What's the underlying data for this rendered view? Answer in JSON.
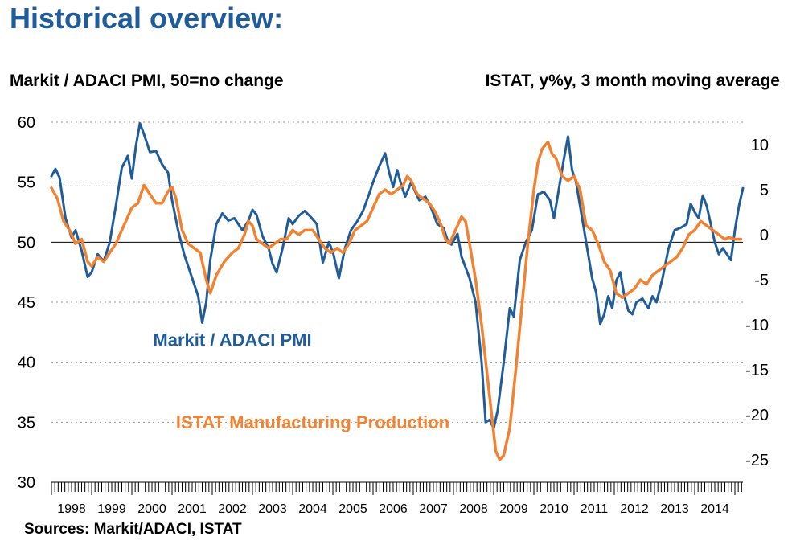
{
  "title": "Historical overview:",
  "sources": "Sources: Markit/ADACI, ISTAT",
  "colors": {
    "pmi": "#1F5C99",
    "istat": "#F08232",
    "title": "#1F5C99",
    "grid": "#9a9a9a"
  },
  "chart_data": {
    "type": "line",
    "left_axis_label": "Markit / ADACI PMI, 50=no change",
    "right_axis_label": "ISTAT, y%y, 3 month moving average",
    "left_ylim": [
      30,
      60
    ],
    "left_ticks": [
      "60",
      "55",
      "50",
      "45",
      "40",
      "35",
      "30"
    ],
    "right_ylim": [
      -27.5,
      12.5
    ],
    "right_ticks": [
      "10",
      "5",
      "0",
      "-5",
      "-10",
      "-15",
      "-20",
      "-25"
    ],
    "x_ticks": [
      "1998",
      "1999",
      "2000",
      "2001",
      "2002",
      "2003",
      "2004",
      "2005",
      "2006",
      "2007",
      "2008",
      "2009",
      "2010",
      "2011",
      "2012",
      "2013",
      "2014"
    ],
    "grid": "horizontal dotted",
    "series": [
      {
        "name": "Markit / ADACI PMI",
        "axis": "left",
        "points": [
          [
            1998.0,
            55.5
          ],
          [
            1998.1,
            56.1
          ],
          [
            1998.2,
            55.4
          ],
          [
            1998.35,
            52.0
          ],
          [
            1998.5,
            50.4
          ],
          [
            1998.6,
            51.0
          ],
          [
            1998.75,
            49.3
          ],
          [
            1998.9,
            47.1
          ],
          [
            1999.0,
            47.5
          ],
          [
            1999.15,
            49.0
          ],
          [
            1999.3,
            48.4
          ],
          [
            1999.45,
            50.0
          ],
          [
            1999.6,
            53.0
          ],
          [
            1999.75,
            56.2
          ],
          [
            1999.9,
            57.2
          ],
          [
            2000.0,
            55.3
          ],
          [
            2000.1,
            58.0
          ],
          [
            2000.2,
            59.9
          ],
          [
            2000.3,
            59.0
          ],
          [
            2000.45,
            57.5
          ],
          [
            2000.6,
            57.6
          ],
          [
            2000.75,
            56.5
          ],
          [
            2000.9,
            55.8
          ],
          [
            2001.0,
            53.5
          ],
          [
            2001.15,
            51.0
          ],
          [
            2001.3,
            49.0
          ],
          [
            2001.5,
            47.0
          ],
          [
            2001.65,
            45.5
          ],
          [
            2001.75,
            43.3
          ],
          [
            2001.85,
            45.0
          ],
          [
            2001.95,
            48.5
          ],
          [
            2002.1,
            51.5
          ],
          [
            2002.25,
            52.4
          ],
          [
            2002.4,
            51.8
          ],
          [
            2002.55,
            52.0
          ],
          [
            2002.75,
            51.0
          ],
          [
            2002.9,
            51.8
          ],
          [
            2003.0,
            52.7
          ],
          [
            2003.1,
            52.3
          ],
          [
            2003.25,
            50.5
          ],
          [
            2003.4,
            49.5
          ],
          [
            2003.5,
            48.2
          ],
          [
            2003.6,
            47.5
          ],
          [
            2003.75,
            49.5
          ],
          [
            2003.9,
            52.0
          ],
          [
            2004.0,
            51.5
          ],
          [
            2004.15,
            52.2
          ],
          [
            2004.3,
            52.6
          ],
          [
            2004.45,
            52.1
          ],
          [
            2004.6,
            51.5
          ],
          [
            2004.75,
            48.3
          ],
          [
            2004.9,
            50.0
          ],
          [
            2005.0,
            49.2
          ],
          [
            2005.15,
            47.0
          ],
          [
            2005.3,
            49.5
          ],
          [
            2005.45,
            51.0
          ],
          [
            2005.6,
            51.7
          ],
          [
            2005.75,
            52.6
          ],
          [
            2005.9,
            54.0
          ],
          [
            2006.0,
            55.0
          ],
          [
            2006.15,
            56.3
          ],
          [
            2006.3,
            57.4
          ],
          [
            2006.4,
            55.8
          ],
          [
            2006.5,
            54.6
          ],
          [
            2006.6,
            56.0
          ],
          [
            2006.7,
            54.8
          ],
          [
            2006.8,
            53.8
          ],
          [
            2006.95,
            55.0
          ],
          [
            2007.05,
            54.2
          ],
          [
            2007.15,
            53.5
          ],
          [
            2007.3,
            53.8
          ],
          [
            2007.45,
            52.8
          ],
          [
            2007.6,
            51.5
          ],
          [
            2007.75,
            51.2
          ],
          [
            2007.85,
            50.2
          ],
          [
            2007.95,
            49.8
          ],
          [
            2008.1,
            50.7
          ],
          [
            2008.2,
            48.8
          ],
          [
            2008.4,
            47.0
          ],
          [
            2008.55,
            45.0
          ],
          [
            2008.7,
            40.0
          ],
          [
            2008.8,
            35.0
          ],
          [
            2008.9,
            35.2
          ],
          [
            2009.0,
            34.5
          ],
          [
            2009.1,
            36.0
          ],
          [
            2009.25,
            40.0
          ],
          [
            2009.4,
            44.5
          ],
          [
            2009.5,
            43.8
          ],
          [
            2009.65,
            48.5
          ],
          [
            2009.8,
            50.0
          ],
          [
            2009.95,
            51.0
          ],
          [
            2010.1,
            54.0
          ],
          [
            2010.25,
            54.2
          ],
          [
            2010.4,
            53.5
          ],
          [
            2010.5,
            52.0
          ],
          [
            2010.6,
            54.0
          ],
          [
            2010.75,
            57.0
          ],
          [
            2010.85,
            58.8
          ],
          [
            2010.95,
            56.0
          ],
          [
            2011.05,
            55.0
          ],
          [
            2011.15,
            53.0
          ],
          [
            2011.25,
            51.0
          ],
          [
            2011.35,
            49.0
          ],
          [
            2011.45,
            47.0
          ],
          [
            2011.55,
            45.8
          ],
          [
            2011.65,
            43.2
          ],
          [
            2011.75,
            44.0
          ],
          [
            2011.85,
            45.5
          ],
          [
            2011.95,
            44.5
          ],
          [
            2012.05,
            46.8
          ],
          [
            2012.15,
            47.5
          ],
          [
            2012.25,
            45.5
          ],
          [
            2012.35,
            44.3
          ],
          [
            2012.45,
            44.0
          ],
          [
            2012.55,
            45.0
          ],
          [
            2012.7,
            45.3
          ],
          [
            2012.85,
            44.5
          ],
          [
            2012.95,
            45.5
          ],
          [
            2013.05,
            45.0
          ],
          [
            2013.2,
            47.0
          ],
          [
            2013.35,
            49.5
          ],
          [
            2013.5,
            51.0
          ],
          [
            2013.65,
            51.2
          ],
          [
            2013.8,
            51.5
          ],
          [
            2013.9,
            53.2
          ],
          [
            2014.0,
            52.5
          ],
          [
            2014.1,
            52.0
          ],
          [
            2014.2,
            53.9
          ],
          [
            2014.3,
            53.0
          ],
          [
            2014.4,
            51.5
          ],
          [
            2014.5,
            50.0
          ],
          [
            2014.6,
            49.0
          ],
          [
            2014.7,
            49.5
          ],
          [
            2014.8,
            49.0
          ],
          [
            2014.9,
            48.5
          ],
          [
            2015.0,
            51.0
          ],
          [
            2015.1,
            53.0
          ],
          [
            2015.2,
            54.5
          ]
        ]
      },
      {
        "name": "ISTAT Manufacturing Production",
        "axis": "right",
        "points": [
          [
            1998.0,
            5.2
          ],
          [
            1998.15,
            4.0
          ],
          [
            1998.3,
            1.5
          ],
          [
            1998.45,
            0.5
          ],
          [
            1998.6,
            -1.0
          ],
          [
            1998.75,
            -0.5
          ],
          [
            1998.9,
            -3.0
          ],
          [
            1999.0,
            -3.5
          ],
          [
            1999.15,
            -2.5
          ],
          [
            1999.3,
            -3.0
          ],
          [
            1999.45,
            -2.0
          ],
          [
            1999.6,
            -1.0
          ],
          [
            1999.75,
            0.5
          ],
          [
            1999.9,
            2.0
          ],
          [
            2000.0,
            3.0
          ],
          [
            2000.15,
            3.5
          ],
          [
            2000.3,
            5.5
          ],
          [
            2000.45,
            4.5
          ],
          [
            2000.6,
            3.5
          ],
          [
            2000.75,
            3.5
          ],
          [
            2000.9,
            4.8
          ],
          [
            2001.0,
            5.3
          ],
          [
            2001.1,
            4.0
          ],
          [
            2001.25,
            0.5
          ],
          [
            2001.4,
            -1.0
          ],
          [
            2001.55,
            -1.5
          ],
          [
            2001.7,
            -2.0
          ],
          [
            2001.85,
            -5.0
          ],
          [
            2001.95,
            -6.5
          ],
          [
            2002.1,
            -4.5
          ],
          [
            2002.3,
            -3.0
          ],
          [
            2002.5,
            -2.0
          ],
          [
            2002.65,
            -1.5
          ],
          [
            2002.8,
            0.0
          ],
          [
            2002.9,
            1.5
          ],
          [
            2003.0,
            1.0
          ],
          [
            2003.1,
            -0.5
          ],
          [
            2003.25,
            -1.0
          ],
          [
            2003.4,
            -1.5
          ],
          [
            2003.55,
            -1.0
          ],
          [
            2003.7,
            -0.5
          ],
          [
            2003.85,
            -0.5
          ],
          [
            2004.0,
            0.5
          ],
          [
            2004.15,
            0.0
          ],
          [
            2004.3,
            0.5
          ],
          [
            2004.5,
            0.5
          ],
          [
            2004.65,
            -0.5
          ],
          [
            2004.8,
            -1.5
          ],
          [
            2004.95,
            -2.0
          ],
          [
            2005.1,
            -1.5
          ],
          [
            2005.25,
            -2.0
          ],
          [
            2005.4,
            -1.0
          ],
          [
            2005.55,
            0.5
          ],
          [
            2005.7,
            1.0
          ],
          [
            2005.85,
            1.5
          ],
          [
            2006.0,
            3.0
          ],
          [
            2006.15,
            4.5
          ],
          [
            2006.3,
            5.0
          ],
          [
            2006.45,
            4.5
          ],
          [
            2006.6,
            5.0
          ],
          [
            2006.75,
            5.5
          ],
          [
            2006.85,
            6.5
          ],
          [
            2006.95,
            6.0
          ],
          [
            2007.1,
            4.5
          ],
          [
            2007.25,
            4.0
          ],
          [
            2007.4,
            3.5
          ],
          [
            2007.55,
            2.5
          ],
          [
            2007.7,
            1.0
          ],
          [
            2007.8,
            -0.5
          ],
          [
            2007.9,
            -1.0
          ],
          [
            2008.0,
            0.0
          ],
          [
            2008.1,
            1.0
          ],
          [
            2008.2,
            2.0
          ],
          [
            2008.3,
            1.5
          ],
          [
            2008.4,
            -1.0
          ],
          [
            2008.55,
            -5.0
          ],
          [
            2008.7,
            -10.0
          ],
          [
            2008.85,
            -16.0
          ],
          [
            2008.95,
            -20.0
          ],
          [
            2009.05,
            -24.0
          ],
          [
            2009.15,
            -25.0
          ],
          [
            2009.25,
            -24.5
          ],
          [
            2009.4,
            -21.5
          ],
          [
            2009.55,
            -15.0
          ],
          [
            2009.7,
            -8.0
          ],
          [
            2009.85,
            -1.0
          ],
          [
            2010.0,
            5.0
          ],
          [
            2010.1,
            8.0
          ],
          [
            2010.2,
            9.5
          ],
          [
            2010.35,
            10.3
          ],
          [
            2010.45,
            9.0
          ],
          [
            2010.55,
            8.5
          ],
          [
            2010.7,
            6.5
          ],
          [
            2010.85,
            6.0
          ],
          [
            2011.0,
            6.5
          ],
          [
            2011.15,
            5.0
          ],
          [
            2011.3,
            1.0
          ],
          [
            2011.45,
            0.5
          ],
          [
            2011.6,
            -1.0
          ],
          [
            2011.75,
            -3.0
          ],
          [
            2011.9,
            -4.0
          ],
          [
            2012.05,
            -6.5
          ],
          [
            2012.2,
            -7.0
          ],
          [
            2012.35,
            -6.5
          ],
          [
            2012.5,
            -6.0
          ],
          [
            2012.65,
            -5.0
          ],
          [
            2012.8,
            -5.5
          ],
          [
            2012.95,
            -4.5
          ],
          [
            2013.1,
            -4.0
          ],
          [
            2013.25,
            -3.5
          ],
          [
            2013.4,
            -3.0
          ],
          [
            2013.55,
            -2.5
          ],
          [
            2013.7,
            -1.5
          ],
          [
            2013.85,
            0.0
          ],
          [
            2014.0,
            0.5
          ],
          [
            2014.15,
            1.5
          ],
          [
            2014.3,
            1.0
          ],
          [
            2014.45,
            0.5
          ],
          [
            2014.6,
            0.0
          ],
          [
            2014.75,
            -0.5
          ],
          [
            2014.85,
            -0.3
          ],
          [
            2015.0,
            -0.5
          ],
          [
            2015.15,
            -0.5
          ]
        ]
      }
    ],
    "annotations": [
      {
        "text": "Markit / ADACI PMI",
        "series": "Markit / ADACI PMI",
        "at": [
          2002.5,
          41.9
        ]
      },
      {
        "text": "ISTAT Manufacturing Production",
        "series": "ISTAT Manufacturing Production",
        "at": [
          2004.5,
          -20.8
        ]
      }
    ],
    "reference_line": {
      "axis": "left",
      "value": 50
    }
  }
}
